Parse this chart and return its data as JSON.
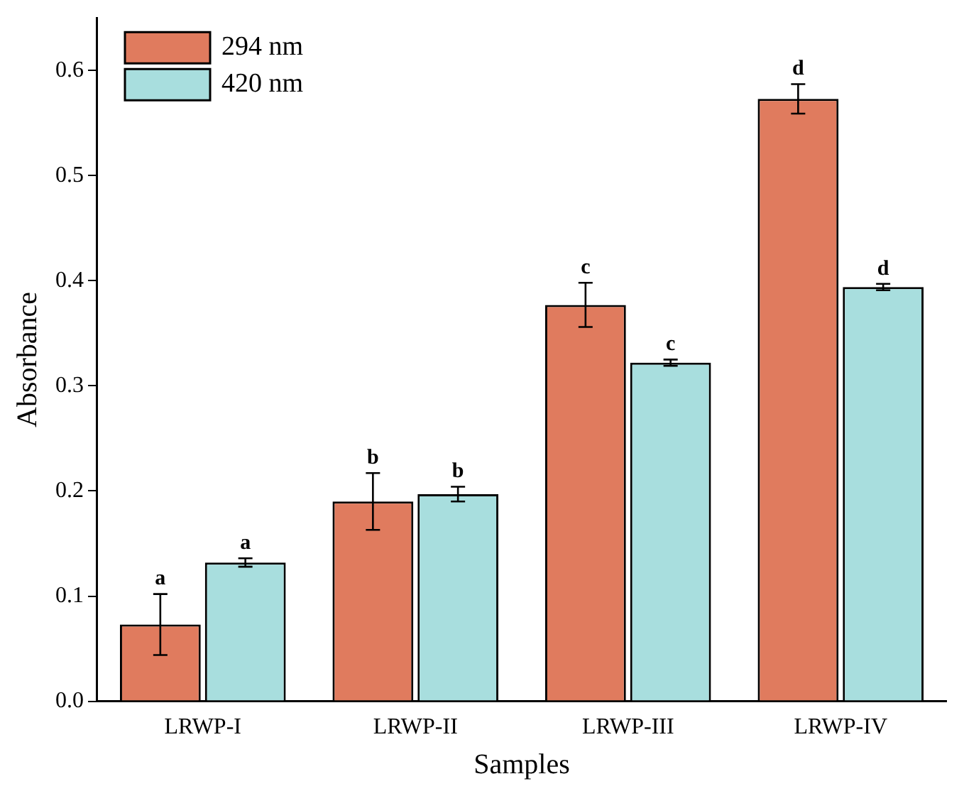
{
  "chart_data": {
    "type": "bar",
    "xlabel": "Samples",
    "ylabel": "Absorbance",
    "categories": [
      "LRWP-I",
      "LRWP-II",
      "LRWP-III",
      "LRWP-IV"
    ],
    "series": [
      {
        "name": "294 nm",
        "color": "#e07b5e",
        "values": [
          0.073,
          0.19,
          0.377,
          0.573
        ],
        "errors": [
          0.029,
          0.027,
          0.021,
          0.014
        ],
        "value_labels": [
          "a",
          "b",
          "c",
          "d"
        ]
      },
      {
        "name": "420 nm",
        "color": "#a8dede",
        "values": [
          0.132,
          0.197,
          0.322,
          0.394
        ],
        "errors": [
          0.004,
          0.007,
          0.003,
          0.003
        ],
        "value_labels": [
          "a",
          "b",
          "c",
          "d"
        ]
      }
    ],
    "ylim": [
      0,
      0.65
    ],
    "yticks": [
      {
        "value": 0,
        "label": "0.0"
      },
      {
        "value": 0.1,
        "label": "0.1"
      },
      {
        "value": 0.2,
        "label": "0.2"
      },
      {
        "value": 0.3,
        "label": "0.3"
      },
      {
        "value": 0.4,
        "label": "0.4"
      },
      {
        "value": 0.5,
        "label": "0.5"
      },
      {
        "value": 0.6,
        "label": "0.6"
      }
    ],
    "grid": false,
    "legend": "top left"
  }
}
